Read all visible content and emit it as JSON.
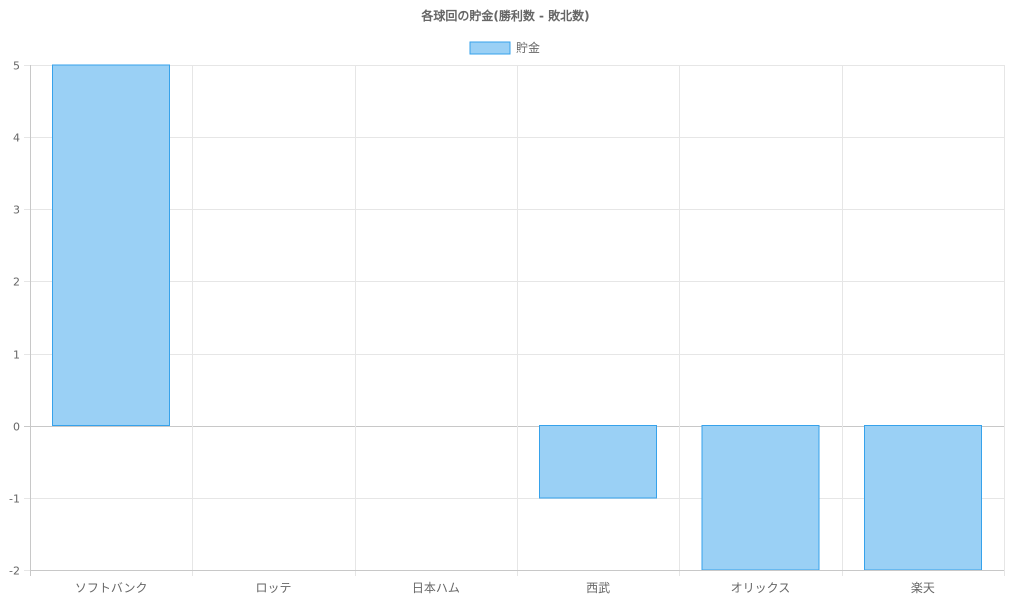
{
  "chart_data": {
    "type": "bar",
    "title": "各球回の貯金(勝利数 - 敗北数)",
    "categories": [
      "ソフトバンク",
      "ロッテ",
      "日本ハム",
      "西武",
      "オリックス",
      "楽天"
    ],
    "series": [
      {
        "name": "貯金",
        "values": [
          5,
          0,
          0,
          -1,
          -2,
          -2
        ]
      }
    ],
    "ylim": [
      -2,
      5
    ],
    "yticks": [
      "5",
      "4",
      "3",
      "2",
      "1",
      "0",
      "-1",
      "-2"
    ],
    "grid": true,
    "legend_position": "top-center",
    "colors": {
      "bar_fill": "#9ad0f5",
      "bar_stroke": "#36a2eb",
      "grid": "#e6e6e6",
      "text": "#666666"
    }
  }
}
